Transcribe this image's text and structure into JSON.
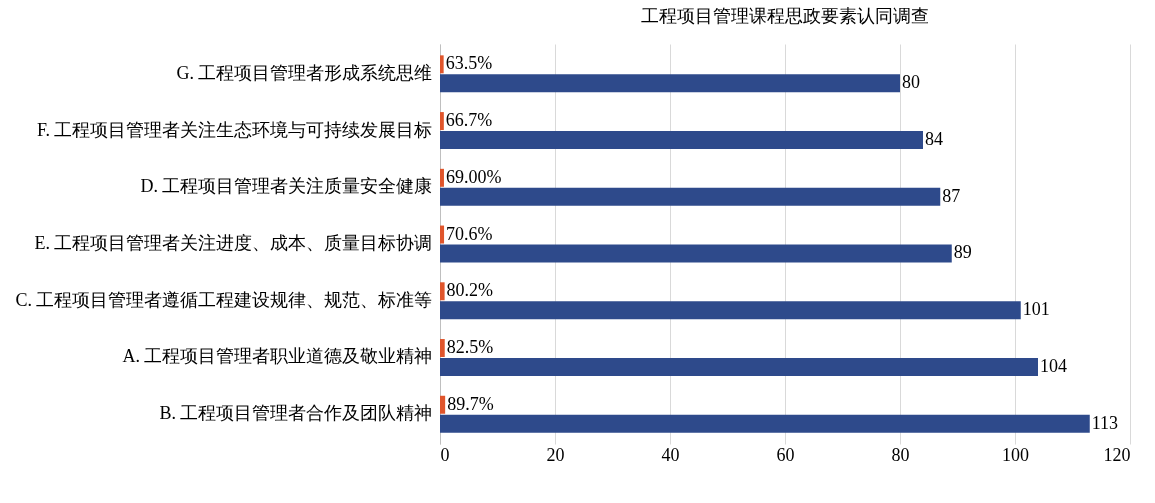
{
  "chart_data": {
    "type": "bar",
    "orientation": "horizontal",
    "title": "工程项目管理课程思政要素认同调查",
    "categories": [
      "G. 工程项目管理者形成系统思维",
      "F. 工程项目管理者关注生态环境与可持续发展目标",
      "D. 工程项目管理者关注质量安全健康",
      "E. 工程项目管理者关注进度、成本、质量目标协调",
      "C. 工程项目管理者遵循工程建设规律、规范、标准等",
      "A. 工程项目管理者职业道德及敬业精神",
      "B. 工程项目管理者合作及团队精神"
    ],
    "series": [
      {
        "color": "#e0552b",
        "values": [
          0.635,
          0.667,
          0.69,
          0.706,
          0.802,
          0.825,
          0.897
        ],
        "value_labels": [
          "63.5%",
          "66.7%",
          "69.00%",
          "70.6%",
          "80.2%",
          "82.5%",
          "89.7%"
        ]
      },
      {
        "color": "#2e4a8b",
        "values": [
          80,
          84,
          87,
          89,
          101,
          104,
          113
        ],
        "value_labels": [
          "80",
          "84",
          "87",
          "89",
          "101",
          "104",
          "113"
        ]
      }
    ],
    "xlim": [
      0,
      120
    ],
    "xticks": [
      0,
      20,
      40,
      60,
      80,
      100,
      120
    ],
    "grid": "x"
  }
}
